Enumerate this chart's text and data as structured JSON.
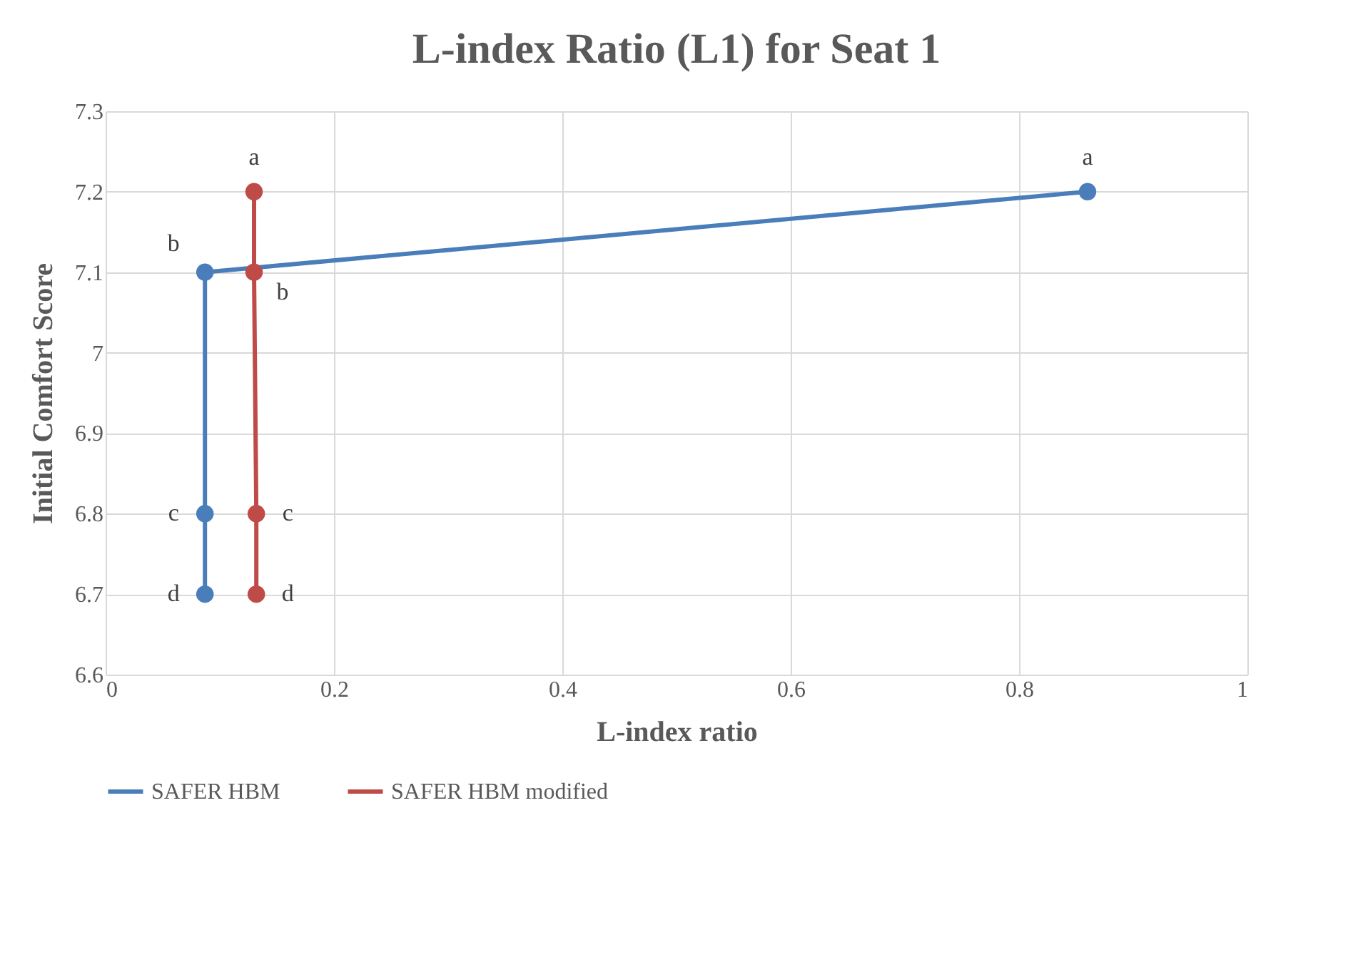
{
  "chart_data": {
    "type": "line",
    "title": "L-index Ratio (L1) for Seat 1",
    "xlabel": "L-index ratio",
    "ylabel": "Initial Comfort Score",
    "series": [
      {
        "name": "SAFER HBM",
        "color": "#4a7ebb",
        "x": [
          0.86,
          0.087,
          0.087,
          0.087
        ],
        "values": [
          7.2,
          7.1,
          6.8,
          6.7
        ]
      },
      {
        "name": "SAFER HBM modified",
        "color": "#be4b48",
        "x": [
          0.13,
          0.13,
          0.132,
          0.132
        ],
        "values": [
          7.2,
          7.1,
          6.8,
          6.7
        ]
      }
    ],
    "annotations": [
      {
        "text": "a",
        "x": 0.86,
        "y": 7.2
      },
      {
        "text": "b",
        "x": 0.087,
        "y": 7.1
      },
      {
        "text": "c",
        "x": 0.087,
        "y": 6.8
      },
      {
        "text": "d",
        "x": 0.087,
        "y": 6.7
      },
      {
        "text": "a",
        "x": 0.13,
        "y": 7.2
      },
      {
        "text": "b",
        "x": 0.13,
        "y": 7.1
      },
      {
        "text": "c",
        "x": 0.132,
        "y": 6.8
      },
      {
        "text": "d",
        "x": 0.132,
        "y": 6.7
      }
    ],
    "xlim": [
      0,
      1
    ],
    "xticks": [
      0,
      0.2,
      0.4,
      0.6,
      0.8,
      1
    ],
    "ylim": [
      6.6,
      7.3
    ],
    "yticks": [
      6.6,
      6.7,
      6.8,
      6.9,
      7,
      7.1,
      7.2,
      7.3
    ],
    "grid": true,
    "legend": "bottom",
    "marker": "circle",
    "line_style": "solid"
  }
}
